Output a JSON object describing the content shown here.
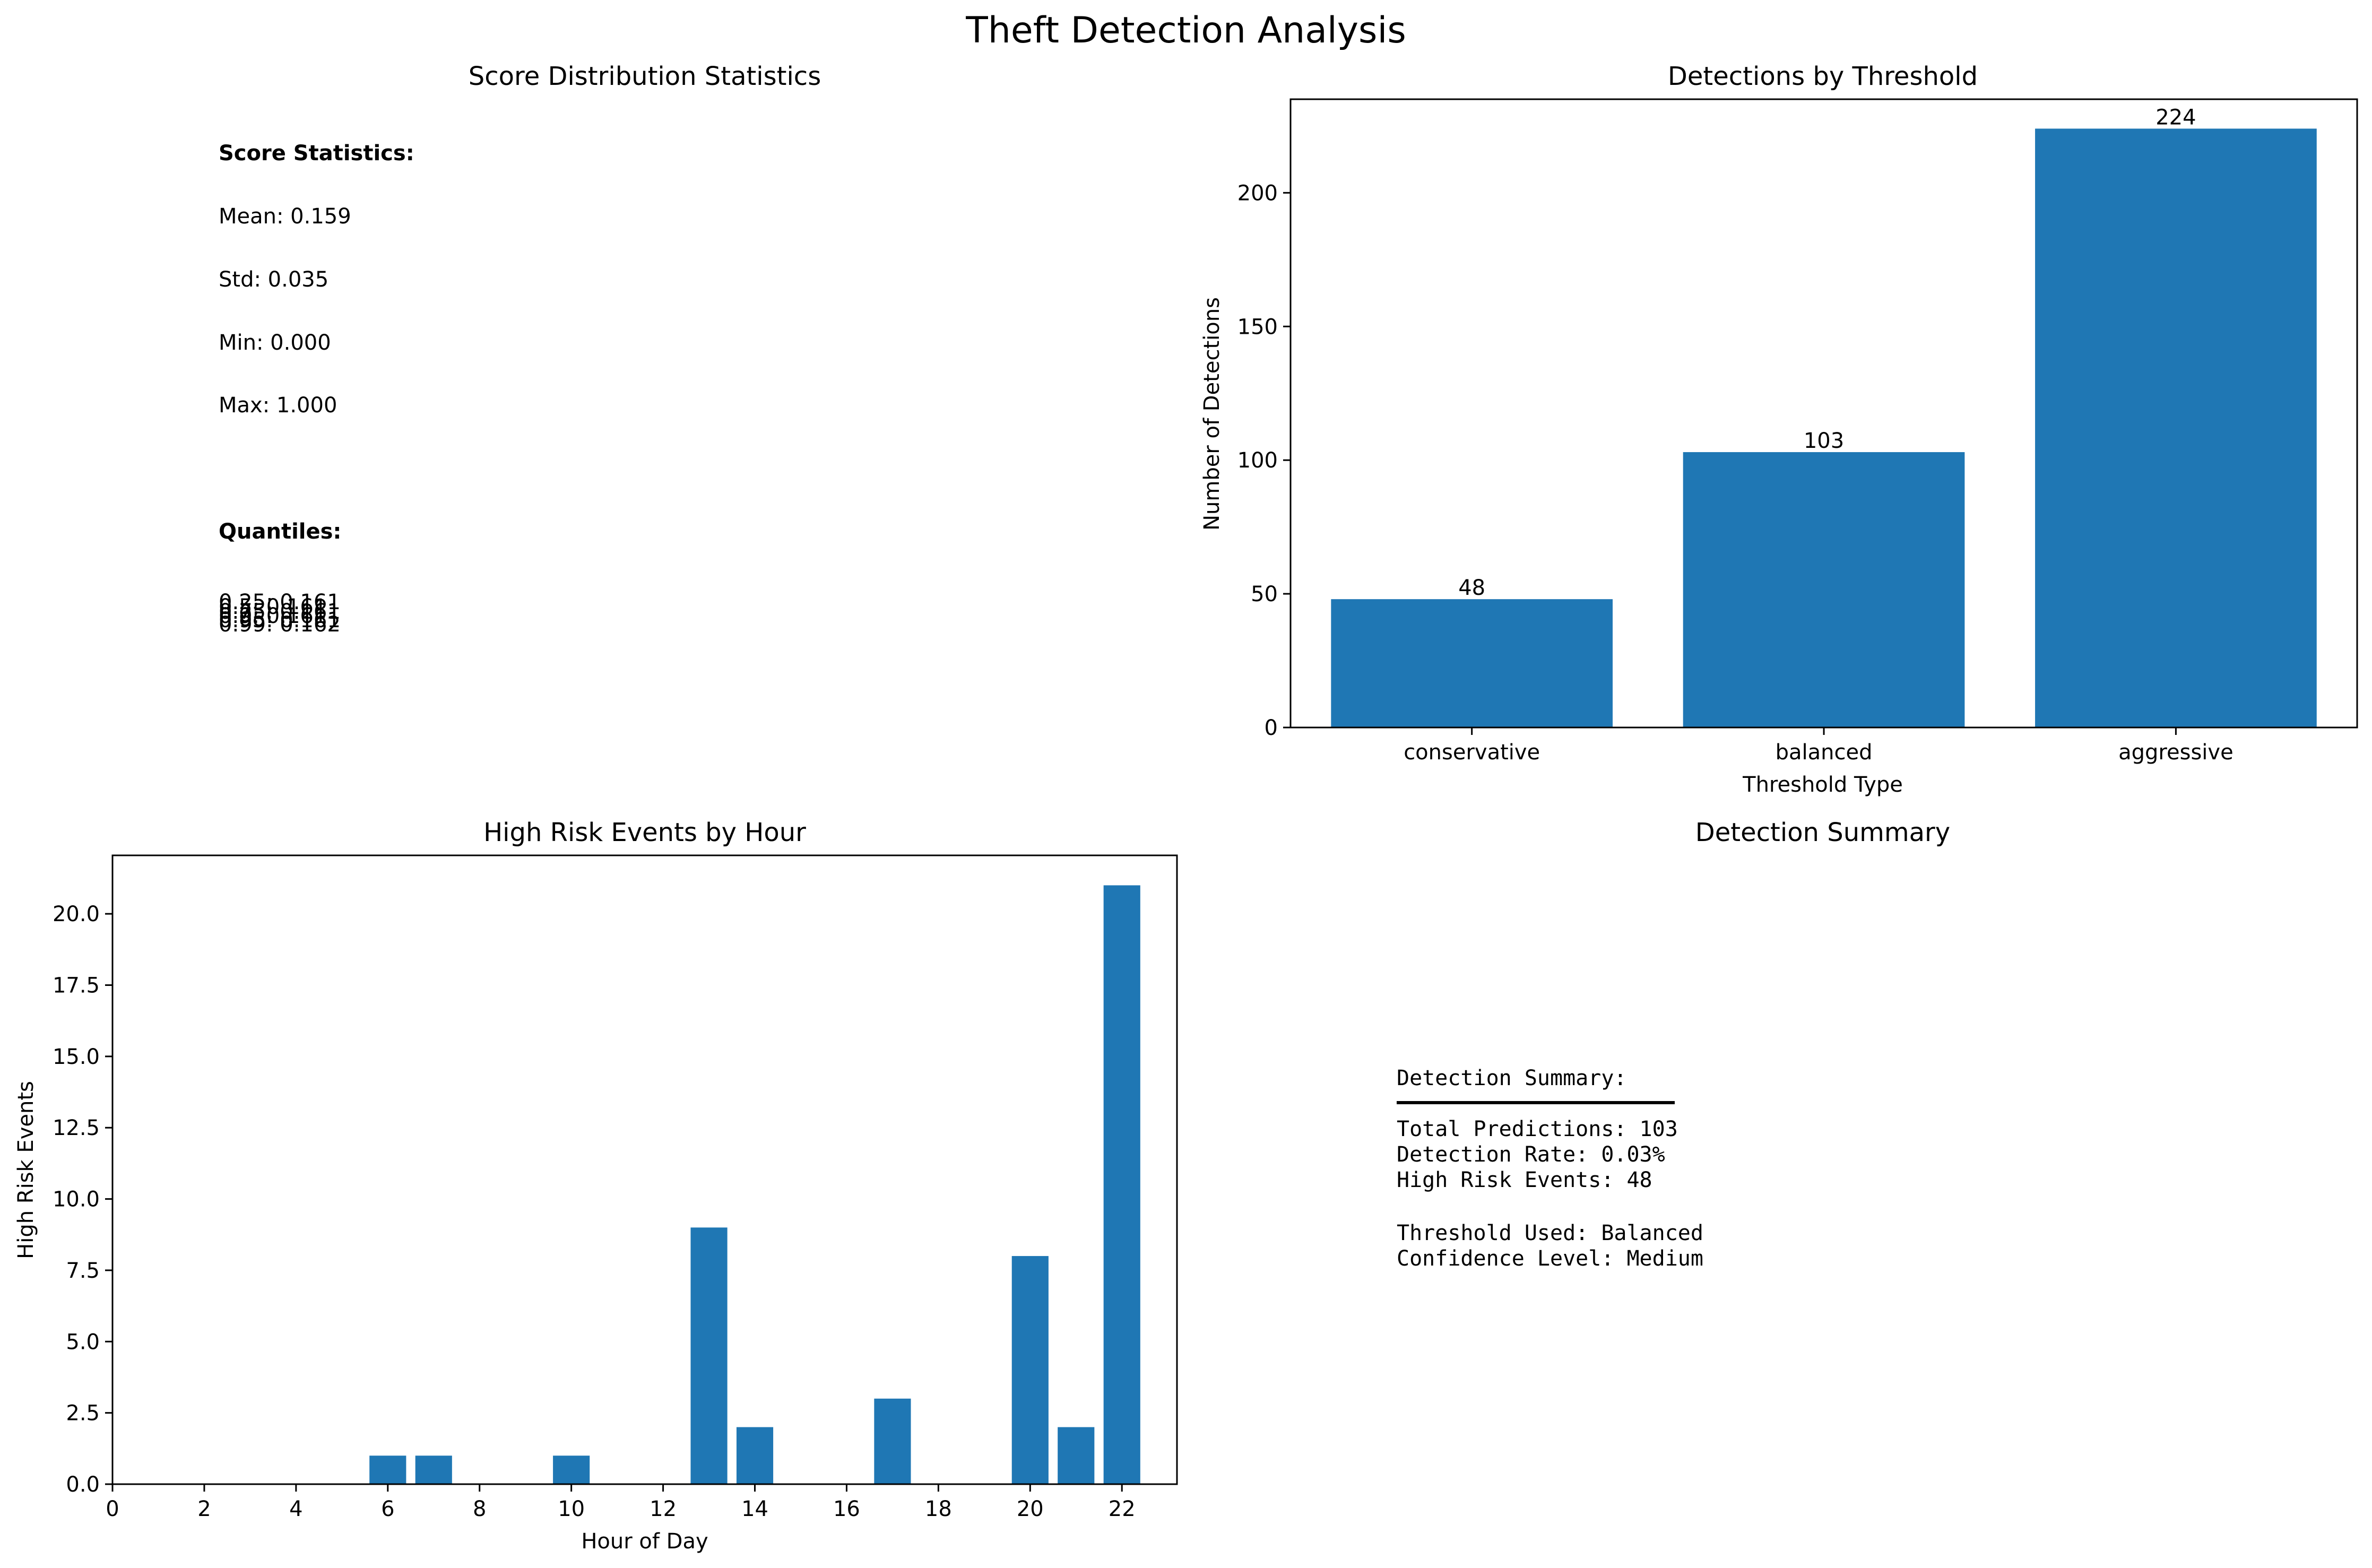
{
  "suptitle": "Theft Detection Analysis",
  "stats_panel": {
    "title": "Score Distribution Statistics",
    "heading": "Score Statistics:",
    "lines": [
      "Mean: 0.159",
      "Std: 0.035",
      "Min: 0.000",
      "Max: 1.000"
    ],
    "quantiles_heading": "Quantiles:",
    "quantiles": [
      "0.25: 0.161",
      "0.5: 0.161",
      "0.75: 0.161",
      "0.9: 0.161",
      "0.95: 0.161",
      "0.99: 0.162"
    ]
  },
  "summary_panel": {
    "title": "Detection Summary",
    "heading": "Detection Summary:",
    "lines": [
      "Total Predictions: 103",
      "Detection Rate: 0.03%",
      "High Risk Events: 48"
    ],
    "lines2": [
      "Threshold Used: Balanced",
      "Confidence Level: Medium"
    ]
  },
  "chart_data": [
    {
      "type": "bar",
      "title": "Detections by Threshold",
      "xlabel": "Threshold Type",
      "ylabel": "Number of Detections",
      "categories": [
        "conservative",
        "balanced",
        "aggressive"
      ],
      "values": [
        48,
        103,
        224
      ],
      "data_labels": [
        "48",
        "103",
        "224"
      ],
      "ylim": [
        0,
        235
      ],
      "yticks": [
        0,
        50,
        100,
        150,
        200
      ],
      "grid": false,
      "color": "#1f77b4"
    },
    {
      "type": "bar",
      "title": "High Risk Events by Hour",
      "xlabel": "Hour of Day",
      "ylabel": "High Risk Events",
      "x": [
        6,
        7,
        10,
        13,
        14,
        17,
        20,
        21,
        22
      ],
      "values": [
        1,
        1,
        1,
        9,
        2,
        3,
        8,
        2,
        21
      ],
      "xlim": [
        0,
        23.2
      ],
      "ylim": [
        0,
        22.05
      ],
      "xticks": [
        0,
        2,
        4,
        6,
        8,
        10,
        12,
        14,
        16,
        18,
        20,
        22
      ],
      "yticks": [
        0.0,
        2.5,
        5.0,
        7.5,
        10.0,
        12.5,
        15.0,
        17.5,
        20.0
      ],
      "ytick_labels": [
        "0.0",
        "2.5",
        "5.0",
        "7.5",
        "10.0",
        "12.5",
        "15.0",
        "17.5",
        "20.0"
      ],
      "grid": false,
      "color": "#1f77b4"
    }
  ]
}
